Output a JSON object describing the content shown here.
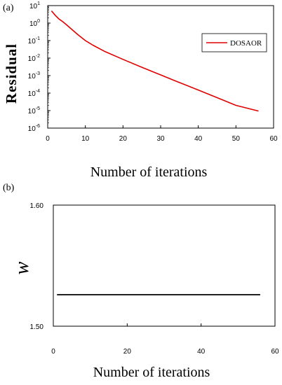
{
  "chart_data": [
    {
      "panel_label": "(a)",
      "type": "line",
      "ylabel": "Residual",
      "xlabel": "Number of iterations",
      "yscale": "log",
      "xlim": [
        0,
        60
      ],
      "ylim": [
        1e-06,
        10
      ],
      "xticks": [
        "0",
        "10",
        "20",
        "30",
        "40",
        "50",
        "60"
      ],
      "ytick_exponents": [
        "1",
        "0",
        "-1",
        "-2",
        "-3",
        "-4",
        "-5",
        "-6"
      ],
      "ytick_base": "10",
      "legend_position": "top-right",
      "grid": false,
      "series": [
        {
          "name": "DOSAOR",
          "color": "#e00000",
          "x": [
            1,
            2,
            3,
            4,
            5,
            6,
            8,
            10,
            12,
            15,
            20,
            25,
            30,
            35,
            40,
            45,
            50,
            56
          ],
          "y": [
            5,
            2.8,
            1.7,
            1.2,
            0.8,
            0.52,
            0.22,
            0.1,
            0.055,
            0.025,
            0.0085,
            0.003,
            0.0011,
            0.0004,
            0.00015,
            5.5e-05,
            2e-05,
            9.5e-06
          ]
        }
      ]
    },
    {
      "panel_label": "(b)",
      "type": "line",
      "ylabel": "w",
      "xlabel": "Number of iterations",
      "xlim": [
        0,
        60
      ],
      "ylim": [
        1.5,
        1.6
      ],
      "xticks": [
        "0",
        "20",
        "40",
        "60"
      ],
      "yticks": [
        "1.50",
        "1.60"
      ],
      "grid": false,
      "series": [
        {
          "color": "#000000",
          "x": [
            1,
            56
          ],
          "y": [
            1.526,
            1.526
          ]
        }
      ]
    }
  ]
}
